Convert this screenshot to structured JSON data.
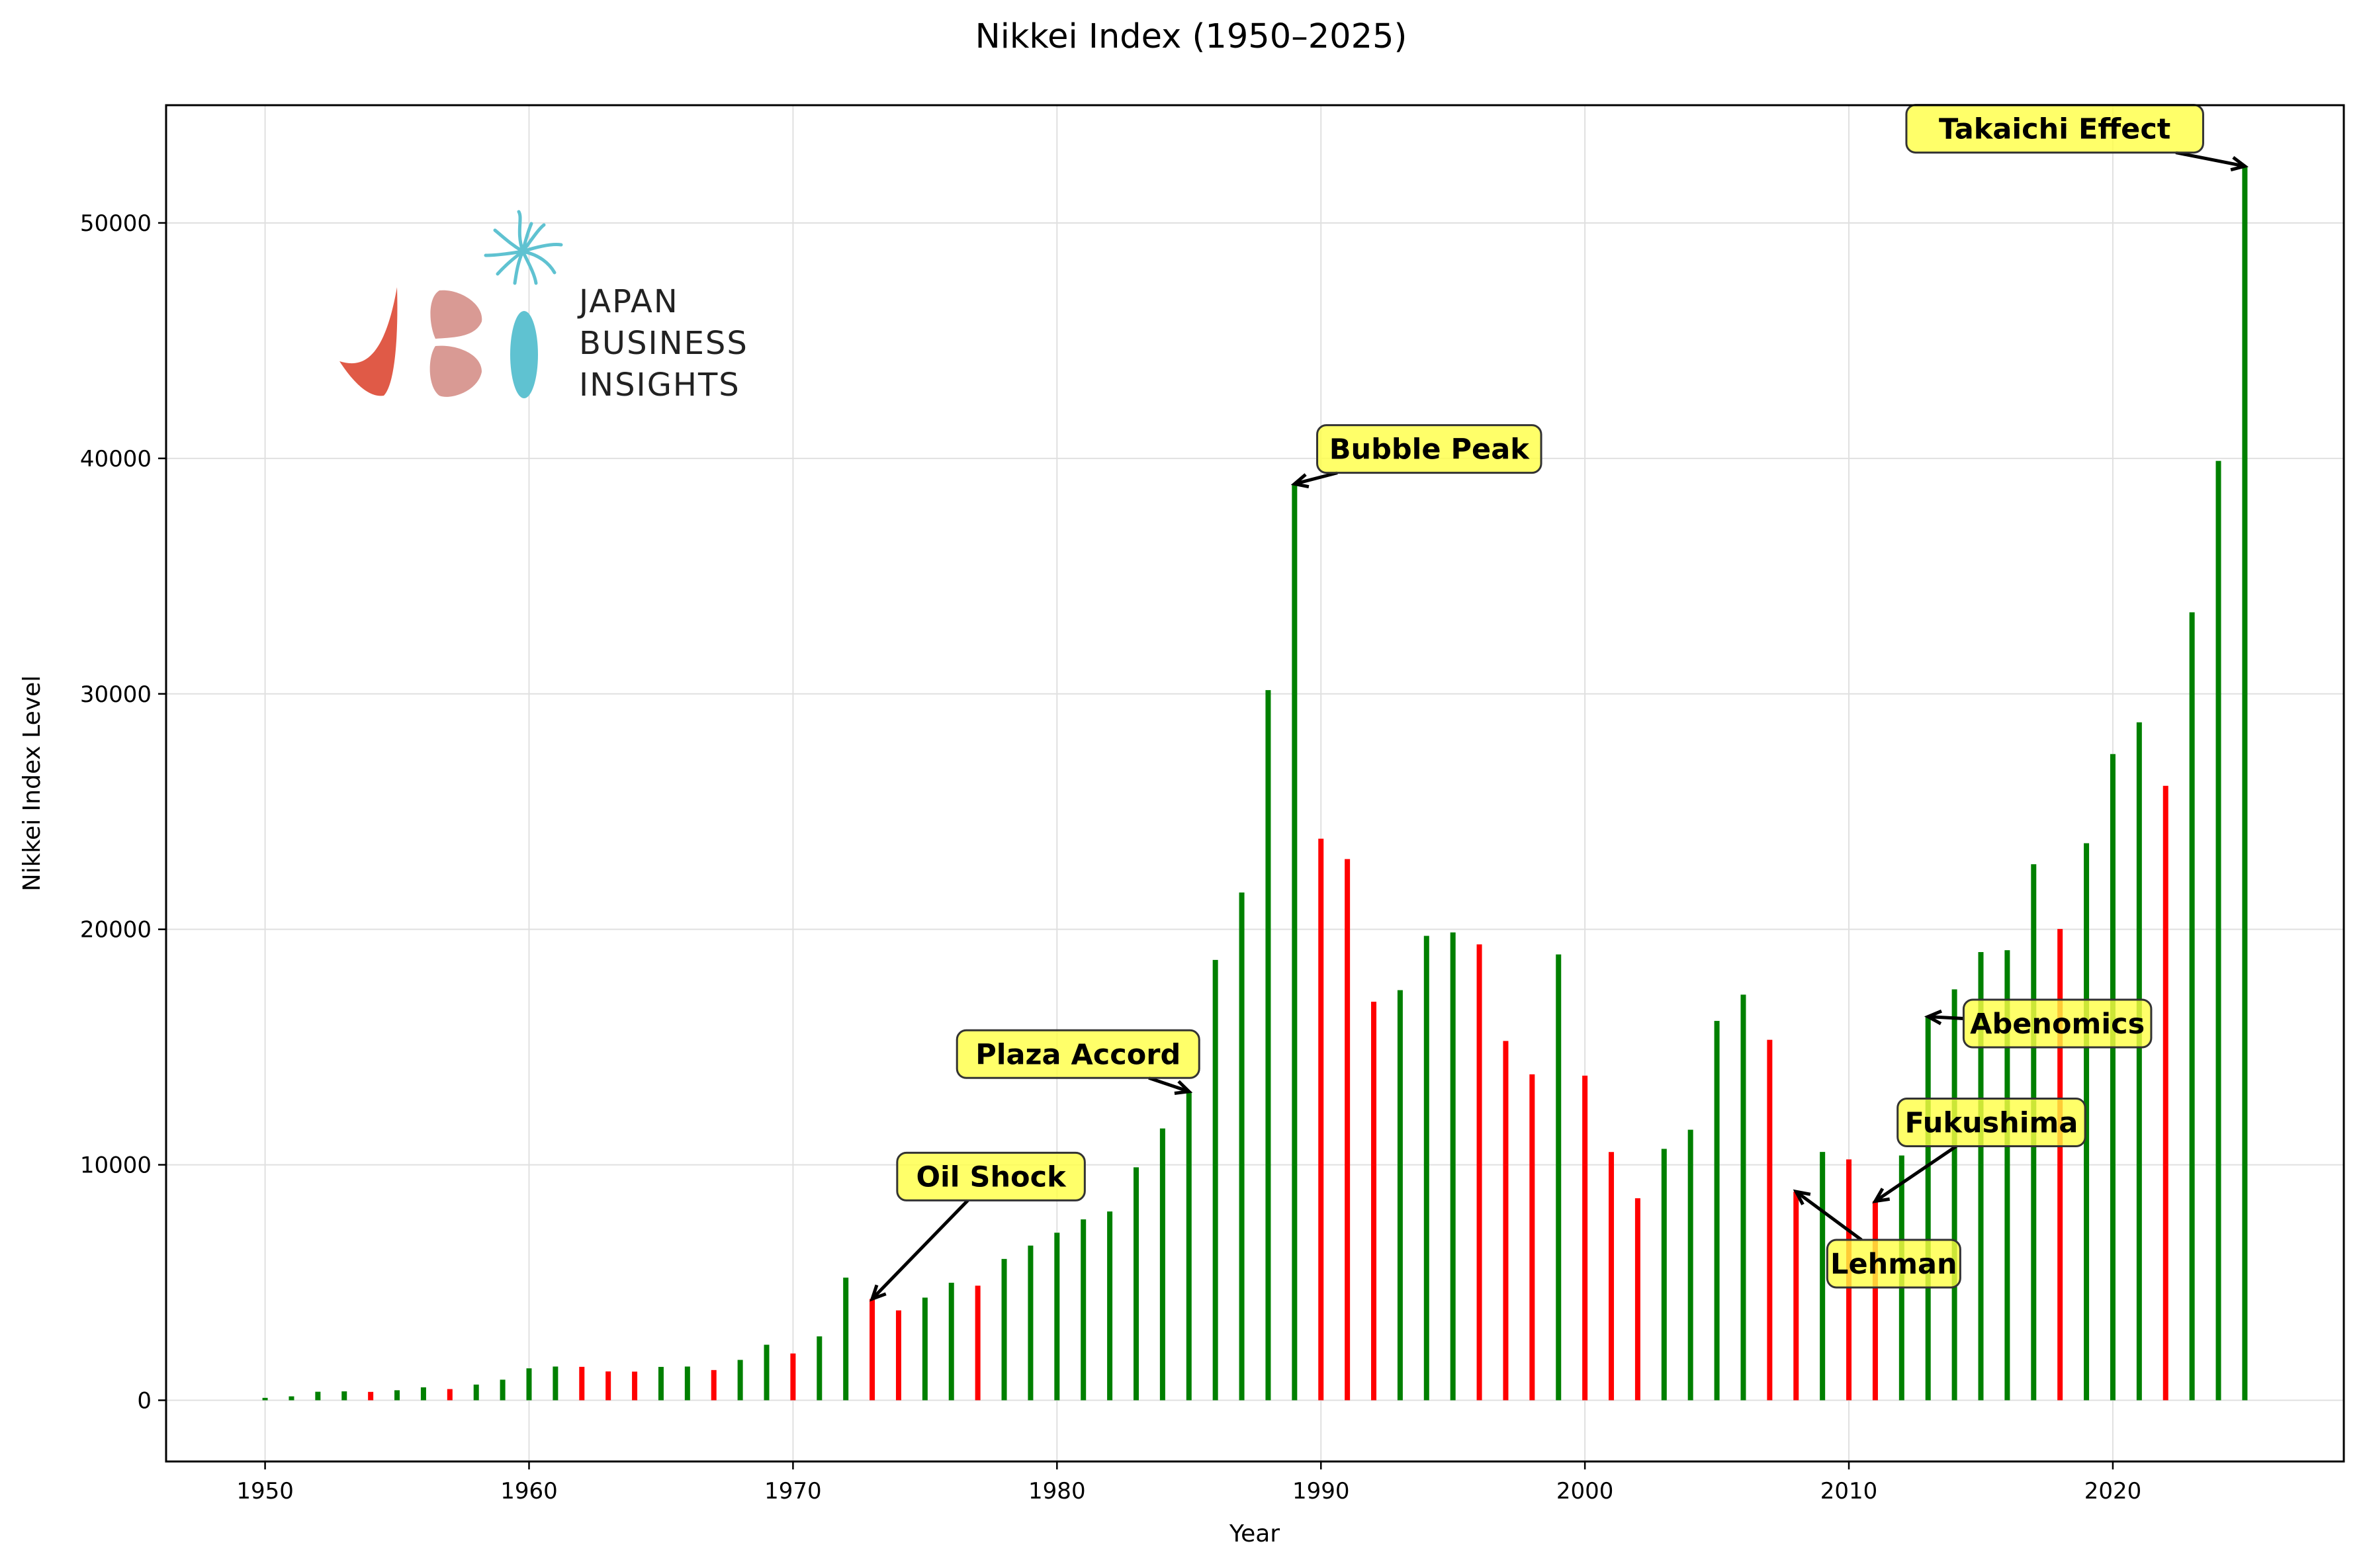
{
  "chart_data": {
    "type": "bar",
    "title": "Nikkei Index (1950–2025)",
    "xlabel": "Year",
    "ylabel": "Nikkei Index Level",
    "xlim": [
      1946.25,
      2028.75
    ],
    "ylim": [
      -2600,
      55000
    ],
    "xticks": [
      1950,
      1960,
      1970,
      1980,
      1990,
      2000,
      2010,
      2020
    ],
    "yticks": [
      0,
      10000,
      20000,
      30000,
      40000,
      50000
    ],
    "grid": true,
    "colors": {
      "up": "#008000",
      "down": "#ff0000"
    },
    "x": [
      1950,
      1951,
      1952,
      1953,
      1954,
      1955,
      1956,
      1957,
      1958,
      1959,
      1960,
      1961,
      1962,
      1963,
      1964,
      1965,
      1966,
      1967,
      1968,
      1969,
      1970,
      1971,
      1972,
      1973,
      1974,
      1975,
      1976,
      1977,
      1978,
      1979,
      1980,
      1981,
      1982,
      1983,
      1984,
      1985,
      1986,
      1987,
      1988,
      1989,
      1990,
      1991,
      1992,
      1993,
      1994,
      1995,
      1996,
      1997,
      1998,
      1999,
      2000,
      2001,
      2002,
      2003,
      2004,
      2005,
      2006,
      2007,
      2008,
      2009,
      2010,
      2011,
      2012,
      2013,
      2014,
      2015,
      2016,
      2017,
      2018,
      2019,
      2020,
      2021,
      2022,
      2023,
      2024,
      2025
    ],
    "values": [
      102,
      166,
      362,
      378,
      356,
      425,
      549,
      475,
      666,
      874,
      1356,
      1432,
      1420,
      1225,
      1216,
      1417,
      1432,
      1283,
      1714,
      2358,
      1987,
      2714,
      5208,
      4306,
      3817,
      4359,
      4991,
      4866,
      6002,
      6569,
      7116,
      7682,
      8017,
      9893,
      11543,
      13113,
      18701,
      21564,
      30159,
      38916,
      23849,
      22984,
      16925,
      17417,
      19723,
      19868,
      19361,
      15259,
      13842,
      18934,
      13786,
      10543,
      8579,
      10677,
      11489,
      16111,
      17226,
      15308,
      8860,
      10546,
      10229,
      8455,
      10395,
      16291,
      17451,
      19034,
      19114,
      22765,
      20015,
      23657,
      27444,
      28792,
      26095,
      33464,
      39894,
      52411
    ],
    "up": [
      true,
      true,
      true,
      true,
      false,
      true,
      true,
      false,
      true,
      true,
      true,
      true,
      false,
      false,
      false,
      true,
      true,
      false,
      true,
      true,
      false,
      true,
      true,
      false,
      false,
      true,
      true,
      false,
      true,
      true,
      true,
      true,
      true,
      true,
      true,
      true,
      true,
      true,
      true,
      true,
      false,
      false,
      false,
      true,
      true,
      true,
      false,
      false,
      false,
      true,
      false,
      false,
      false,
      true,
      true,
      true,
      true,
      false,
      false,
      true,
      false,
      false,
      true,
      true,
      true,
      true,
      true,
      true,
      false,
      true,
      true,
      true,
      false,
      true,
      true,
      true
    ],
    "annotations": [
      {
        "text": "Oil Shock",
        "target_x": 1973,
        "target_y": 4306,
        "label_x": 1977.5,
        "label_y": 9500
      },
      {
        "text": "Plaza Accord",
        "target_x": 1985,
        "target_y": 13113,
        "label_x": 1980.8,
        "label_y": 14700
      },
      {
        "text": "Bubble Peak",
        "target_x": 1989,
        "target_y": 38916,
        "label_x": 1994.1,
        "label_y": 40400
      },
      {
        "text": "Lehman",
        "target_x": 2008,
        "target_y": 8860,
        "label_x": 2011.7,
        "label_y": 5800
      },
      {
        "text": "Fukushima",
        "target_x": 2011,
        "target_y": 8455,
        "label_x": 2015.4,
        "label_y": 11800
      },
      {
        "text": "Abenomics",
        "target_x": 2013,
        "target_y": 16291,
        "label_x": 2017.9,
        "label_y": 16000
      },
      {
        "text": "Takaichi Effect",
        "target_x": 2025,
        "target_y": 52411,
        "label_x": 2017.8,
        "label_y": 54000
      }
    ]
  },
  "logo": {
    "lines": [
      "JAPAN",
      "BUSINESS",
      "INSIGHTS"
    ],
    "colors": {
      "red": "#e05a47",
      "pink": "#d99a94",
      "teal": "#5fc2d1"
    }
  },
  "annotation_style": {
    "box_fill": "#ffff44",
    "box_stroke": "#333333"
  }
}
